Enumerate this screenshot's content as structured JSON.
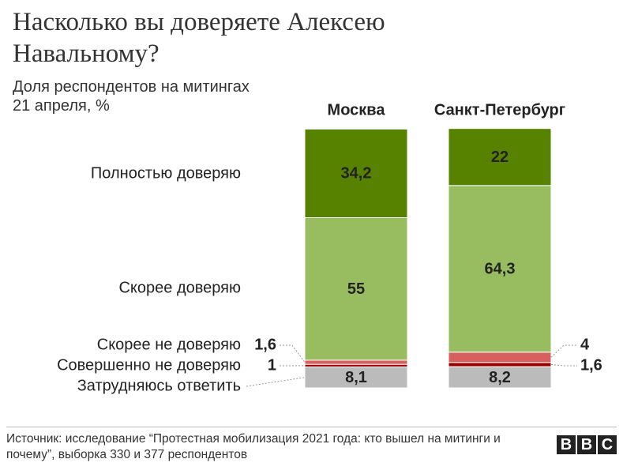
{
  "chart_data": {
    "type": "stacked-bar",
    "title": "Насколько вы доверяете Алексею Навальному?",
    "subtitle": "Доля респондентов на митингах 21 апреля, %",
    "categories": [
      "Москва",
      "Санкт-Петербург"
    ],
    "ylim": [
      0,
      100
    ],
    "series": [
      {
        "name": "Затрудняюсь ответить",
        "color": "#bbbbbb",
        "values": [
          8.1,
          8.2
        ],
        "value_labels": [
          "8,1",
          "8,2"
        ]
      },
      {
        "name": "Совершенно не доверяю",
        "color": "#990000",
        "values": [
          1,
          1.6
        ],
        "value_labels": [
          "1",
          "1,6"
        ]
      },
      {
        "name": "Скорее не доверяю",
        "color": "#d5605f",
        "values": [
          1.6,
          4
        ],
        "value_labels": [
          "1,6",
          "4"
        ]
      },
      {
        "name": "Скорее доверяю",
        "color": "#98bd61",
        "values": [
          55,
          64.3
        ],
        "value_labels": [
          "55",
          "64,3"
        ]
      },
      {
        "name": "Полностью доверяю",
        "color": "#578200",
        "values": [
          34.2,
          22
        ],
        "value_labels": [
          "34,2",
          "22"
        ]
      }
    ],
    "source": "Источник: исследование “Протестная мобилизация 2021 года: кто вышел на митинги и почему”, выборка 330 и 377 респондентов"
  },
  "logo": [
    "B",
    "B",
    "C"
  ]
}
